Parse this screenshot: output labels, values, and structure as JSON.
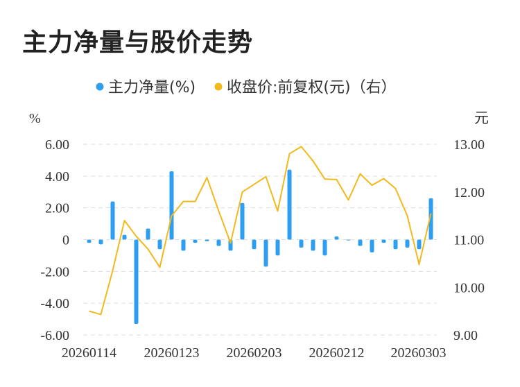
{
  "title": "主力净量与股价走势",
  "colors": {
    "bar": "#2e9ff0",
    "line": "#f3b81c",
    "grid": "#dddddd",
    "text": "#333333"
  },
  "chart_data": {
    "type": "bar",
    "title": "主力净量与股价走势",
    "legend_position": "top",
    "grid": true,
    "x_tick_labels": [
      "20260114",
      "20260123",
      "20260203",
      "20260212",
      "20260303"
    ],
    "left_axis": {
      "unit": "%",
      "ylim": [
        -6,
        6
      ],
      "ticks": [
        6,
        4,
        2,
        0,
        -2,
        -4,
        -6
      ],
      "tick_labels": [
        "6.00",
        "4.00",
        "2.00",
        "0",
        "-2.00",
        "-4.00",
        "-6.00"
      ]
    },
    "right_axis": {
      "unit": "元",
      "ylim": [
        9,
        13
      ],
      "ticks": [
        13,
        12,
        11,
        10,
        9
      ],
      "tick_labels": [
        "13.00",
        "12.00",
        "11.00",
        "10.00",
        "9.00"
      ]
    },
    "series": [
      {
        "name": "主力净量(%)",
        "type": "bar",
        "axis": "left",
        "values": [
          -0.2,
          -0.3,
          2.4,
          0.3,
          -5.3,
          0.7,
          -0.6,
          4.3,
          -0.7,
          -0.2,
          -0.1,
          -0.4,
          -0.7,
          2.3,
          -0.6,
          -1.7,
          -1.0,
          4.4,
          -0.5,
          -0.7,
          -1.0,
          0.2,
          -0.05,
          -0.4,
          -0.8,
          -0.2,
          -0.6,
          -0.5,
          -0.6,
          2.6
        ]
      },
      {
        "name": "收盘价:前复权(元)（右）",
        "type": "line",
        "axis": "right",
        "values": [
          9.5,
          9.43,
          10.35,
          11.4,
          11.07,
          10.8,
          10.42,
          11.5,
          11.8,
          11.8,
          12.3,
          11.6,
          10.93,
          12.0,
          12.16,
          12.32,
          11.6,
          12.8,
          12.95,
          12.65,
          12.27,
          12.26,
          11.83,
          12.38,
          12.14,
          12.28,
          12.07,
          11.5,
          10.48,
          11.55
        ]
      }
    ]
  }
}
